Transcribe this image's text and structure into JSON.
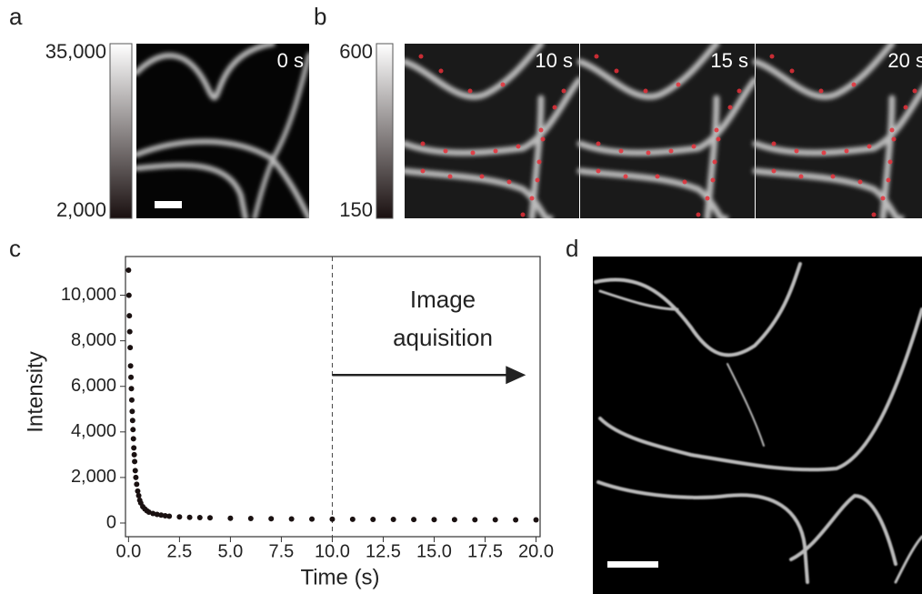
{
  "panels": {
    "a": {
      "label": "a",
      "colorbar": {
        "max": "35,000",
        "min": "2,000"
      },
      "time": "0 s"
    },
    "b": {
      "label": "b",
      "colorbar": {
        "max": "600",
        "min": "150"
      },
      "times": [
        "10 s",
        "15 s",
        "20 s"
      ]
    },
    "c": {
      "label": "c"
    },
    "d": {
      "label": "d"
    }
  },
  "chart_data": {
    "type": "scatter",
    "xlabel": "Time (s)",
    "ylabel": "Intensity",
    "color": "#1a1111",
    "x": [
      0,
      0.02,
      0.04,
      0.06,
      0.08,
      0.1,
      0.12,
      0.14,
      0.16,
      0.18,
      0.2,
      0.22,
      0.24,
      0.26,
      0.28,
      0.3,
      0.33,
      0.36,
      0.4,
      0.45,
      0.5,
      0.55,
      0.6,
      0.7,
      0.8,
      0.9,
      1.0,
      1.2,
      1.4,
      1.6,
      1.8,
      2.0,
      2.5,
      3,
      3.5,
      4,
      5,
      6,
      7,
      8,
      9,
      10,
      11,
      12,
      13,
      14,
      15,
      16,
      17,
      18,
      19,
      20
    ],
    "values": [
      11100,
      10000,
      9100,
      8400,
      7700,
      6900,
      6400,
      5900,
      5400,
      4900,
      4500,
      4100,
      3700,
      3300,
      3000,
      2700,
      2300,
      2000,
      1700,
      1400,
      1200,
      1000,
      880,
      720,
      620,
      540,
      480,
      420,
      380,
      350,
      320,
      300,
      270,
      250,
      240,
      230,
      210,
      200,
      190,
      180,
      175,
      170,
      165,
      160,
      160,
      155,
      150,
      150,
      145,
      145,
      140,
      140
    ],
    "xlim": [
      -0.15,
      20.2
    ],
    "ylim": [
      -600,
      11700
    ],
    "xticks": [
      {
        "value": 0,
        "label": "0.0"
      },
      {
        "value": 2.5,
        "label": "2.5"
      },
      {
        "value": 5,
        "label": "5.0"
      },
      {
        "value": 7.5,
        "label": "7.5"
      },
      {
        "value": 10,
        "label": "10.0"
      },
      {
        "value": 12.5,
        "label": "12.5"
      },
      {
        "value": 15,
        "label": "15.0"
      },
      {
        "value": 17.5,
        "label": "17.5"
      },
      {
        "value": 20,
        "label": "20.0"
      }
    ],
    "yticks": [
      0,
      {
        "value": 2000,
        "label": "2,000"
      },
      {
        "value": 4000,
        "label": "4,000"
      },
      {
        "value": 6000,
        "label": "6,000"
      },
      {
        "value": 8000,
        "label": "8,000"
      },
      {
        "value": 10000,
        "label": "10,000"
      }
    ],
    "vline": 10,
    "annotation": {
      "text": [
        "Image",
        "aquisition"
      ],
      "arrow_x": [
        10,
        19.5
      ],
      "arrow_y": 6500
    }
  }
}
